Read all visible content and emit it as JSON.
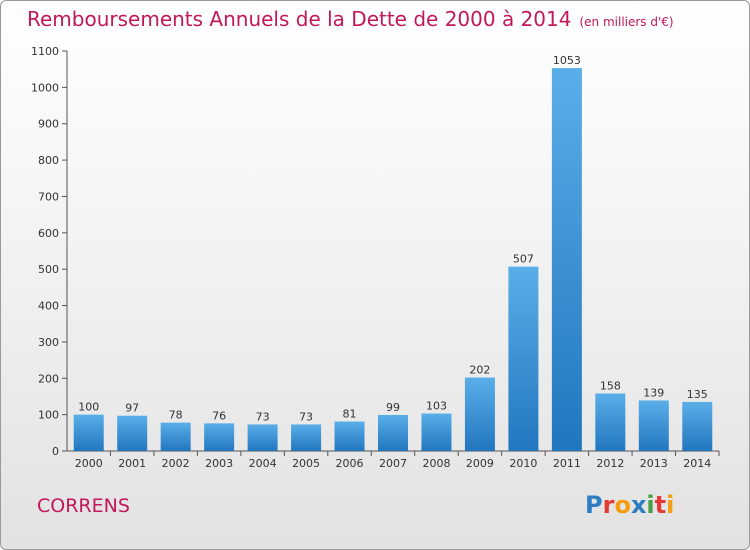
{
  "title": "Remboursements Annuels de la Dette de 2000 à 2014",
  "subtitle": "(en milliers d'€)",
  "commune": "CORRENS",
  "logo": {
    "text": "Proxiti",
    "colors": [
      "#2e7dc2",
      "#e53935",
      "#f39c12",
      "#2e7dc2",
      "#43a047",
      "#e53935",
      "#f39c12"
    ]
  },
  "colors": {
    "title": "#c2185b",
    "bar_light": "#5aaee8",
    "bar_dark": "#2276be",
    "axis": "#555555"
  },
  "chart_data": {
    "type": "bar",
    "title": "Remboursements Annuels de la Dette de 2000 à 2014",
    "categories": [
      "2000",
      "2001",
      "2002",
      "2003",
      "2004",
      "2005",
      "2006",
      "2007",
      "2008",
      "2009",
      "2010",
      "2011",
      "2012",
      "2013",
      "2014"
    ],
    "values": [
      100,
      97,
      78,
      76,
      73,
      73,
      81,
      99,
      103,
      202,
      507,
      1053,
      158,
      139,
      135
    ],
    "yticks": [
      0,
      100,
      200,
      300,
      400,
      500,
      600,
      700,
      800,
      900,
      1000,
      1100
    ],
    "ylim": [
      0,
      1100
    ],
    "grid": false,
    "data_labels": true
  }
}
